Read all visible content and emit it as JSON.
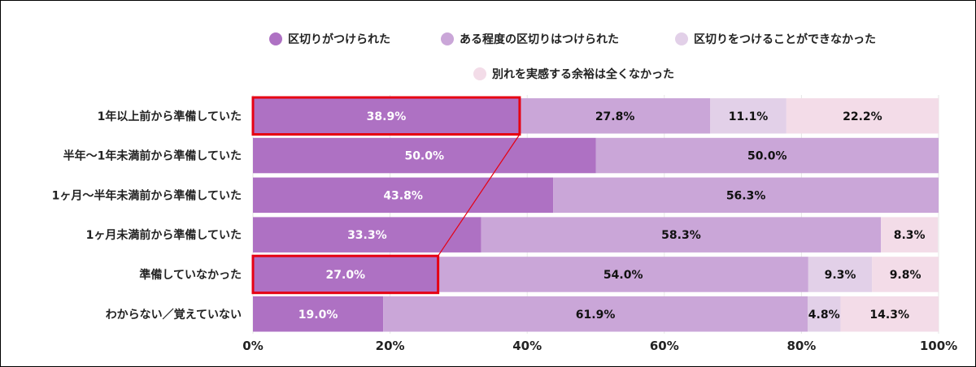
{
  "chart_data": {
    "type": "bar",
    "orientation": "horizontal",
    "stacked": true,
    "categories": [
      "1年以上前から準備していた",
      "半年〜1年未満前から準備していた",
      "1ヶ月〜半年未満前から準備していた",
      "1ヶ月未満前から準備していた",
      "準備していなかった",
      "わからない／覚えていない"
    ],
    "series": [
      {
        "name": "区切りがつけられた",
        "color": "#ae71c3",
        "values": [
          38.9,
          50.0,
          43.8,
          33.3,
          27.0,
          19.0
        ]
      },
      {
        "name": "ある程度の区切りはつけられた",
        "color": "#caa6d8",
        "values": [
          27.8,
          50.0,
          56.3,
          58.3,
          54.0,
          61.9
        ]
      },
      {
        "name": "区切りをつけることができなかった",
        "color": "#e2d0e8",
        "values": [
          11.1,
          0,
          0,
          0,
          9.3,
          4.8
        ]
      },
      {
        "name": "別れを実感する余裕は全くなかった",
        "color": "#f3dce8",
        "values": [
          22.2,
          0,
          0,
          8.3,
          9.8,
          14.3
        ]
      }
    ],
    "xlim": [
      0,
      100
    ],
    "xticks": [
      "0%",
      "20%",
      "40%",
      "60%",
      "80%",
      "100%"
    ],
    "grid": true,
    "legend": "top",
    "highlight": {
      "color": "#e60012",
      "rows": [
        0,
        4
      ],
      "series": 0
    }
  }
}
